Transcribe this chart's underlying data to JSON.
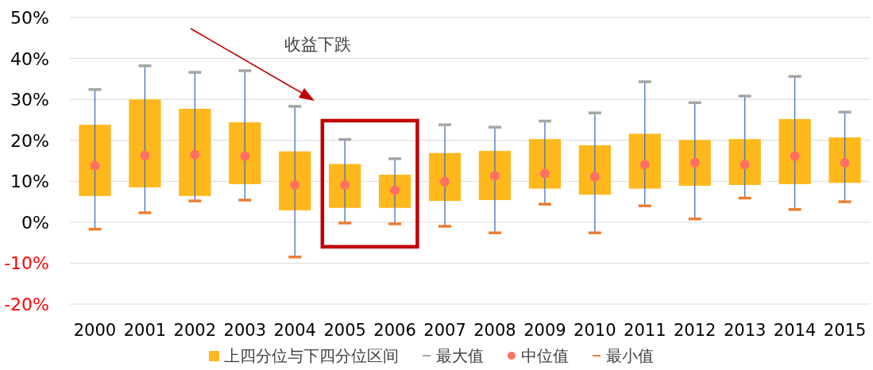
{
  "chart_data": {
    "type": "box",
    "categories": [
      "2000",
      "2001",
      "2002",
      "2003",
      "2004",
      "2005",
      "2006",
      "2007",
      "2008",
      "2009",
      "2010",
      "2011",
      "2012",
      "2013",
      "2014",
      "2015"
    ],
    "series": [
      {
        "name": "上四分位与下四分位区间",
        "color": "#ffb81c",
        "boxes": [
          {
            "low": -1.7,
            "q1": 6.4,
            "median": 13.8,
            "q3": 23.8,
            "high": 32.4
          },
          {
            "low": 2.3,
            "q1": 8.5,
            "median": 16.3,
            "q3": 30.0,
            "high": 38.2
          },
          {
            "low": 5.2,
            "q1": 6.4,
            "median": 16.5,
            "q3": 27.7,
            "high": 36.6
          },
          {
            "low": 5.4,
            "q1": 9.3,
            "median": 16.1,
            "q3": 24.4,
            "high": 37.0
          },
          {
            "low": -8.5,
            "q1": 2.9,
            "median": 9.1,
            "q3": 17.3,
            "high": 28.3
          },
          {
            "low": -0.2,
            "q1": 3.5,
            "median": 9.1,
            "q3": 14.2,
            "high": 20.2
          },
          {
            "low": -0.4,
            "q1": 3.5,
            "median": 7.8,
            "q3": 11.6,
            "high": 15.5
          },
          {
            "low": -1.0,
            "q1": 5.2,
            "median": 9.9,
            "q3": 16.9,
            "high": 23.8
          },
          {
            "low": -2.6,
            "q1": 5.4,
            "median": 11.3,
            "q3": 17.4,
            "high": 23.2
          },
          {
            "low": 4.4,
            "q1": 8.2,
            "median": 11.9,
            "q3": 20.3,
            "high": 24.7
          },
          {
            "low": -2.6,
            "q1": 6.7,
            "median": 11.1,
            "q3": 18.8,
            "high": 26.7
          },
          {
            "low": 4.0,
            "q1": 8.2,
            "median": 14.1,
            "q3": 21.6,
            "high": 34.3
          },
          {
            "low": 0.8,
            "q1": 8.9,
            "median": 14.5,
            "q3": 20.1,
            "high": 29.2
          },
          {
            "low": 5.9,
            "q1": 9.1,
            "median": 14.1,
            "q3": 20.3,
            "high": 30.8
          },
          {
            "low": 3.1,
            "q1": 9.3,
            "median": 16.1,
            "q3": 25.2,
            "high": 35.6
          },
          {
            "low": 5.0,
            "q1": 9.6,
            "median": 14.5,
            "q3": 20.7,
            "high": 26.9
          }
        ]
      }
    ],
    "ylim": [
      -20,
      50
    ],
    "yticks": [
      {
        "value": -20,
        "label": "-20%"
      },
      {
        "value": -10,
        "label": "-10%"
      },
      {
        "value": 0,
        "label": "0%"
      },
      {
        "value": 10,
        "label": "10%"
      },
      {
        "value": 20,
        "label": "20%"
      },
      {
        "value": 30,
        "label": "30%"
      },
      {
        "value": 40,
        "label": "40%"
      },
      {
        "value": 50,
        "label": "50%"
      }
    ],
    "grid": "y",
    "legend": "bottom",
    "annotations": [
      "收益下跌",
      "最大值",
      "中位值",
      "最小值"
    ]
  }
}
